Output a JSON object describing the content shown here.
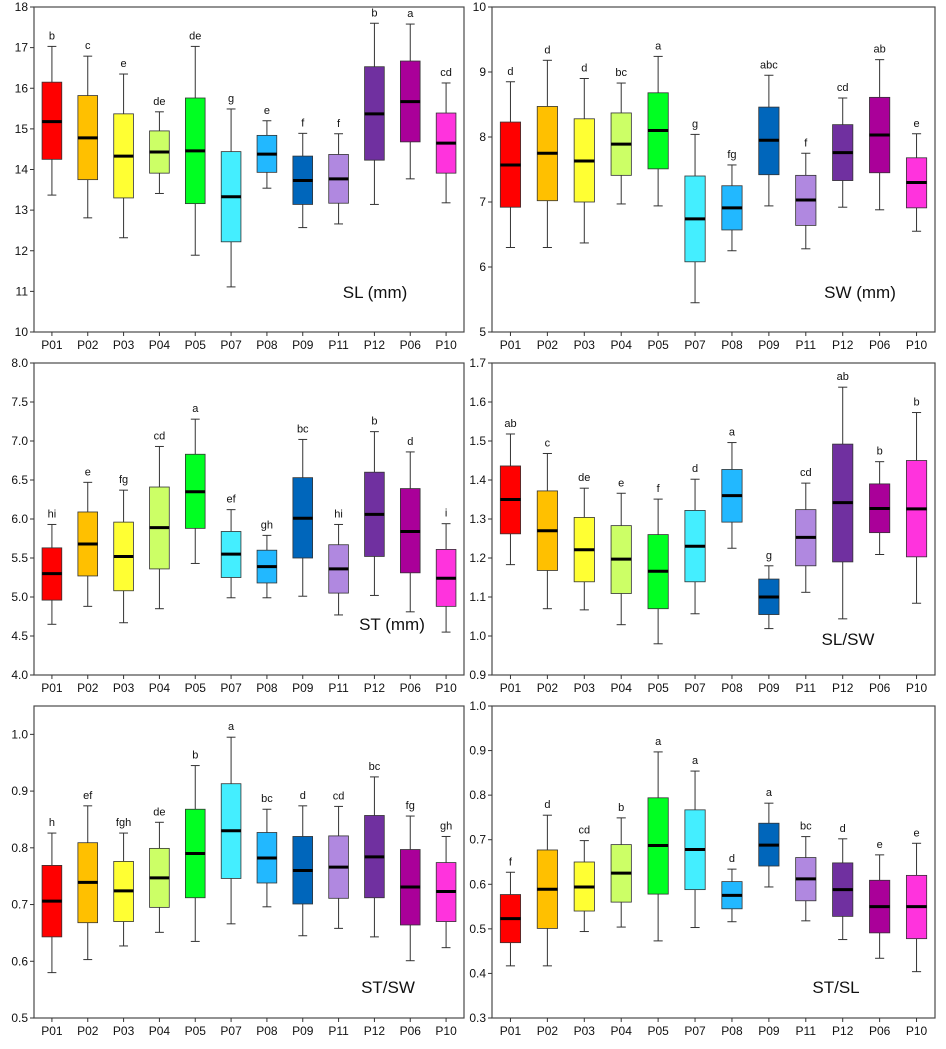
{
  "colors": {
    "P01": "#ff0000",
    "P02": "#ffc000",
    "P03": "#ffff33",
    "P04": "#ccff66",
    "P05": "#00ff22",
    "P07": "#44eeff",
    "P08": "#22b8ff",
    "P09": "#0066bb",
    "P11": "#b088e0",
    "P12": "#7030a0",
    "P06": "#aa0099",
    "P10": "#ff33dd"
  },
  "chart_data": [
    {
      "type": "box",
      "title": "SL (mm)",
      "categories": [
        "P01",
        "P02",
        "P03",
        "P04",
        "P05",
        "P07",
        "P08",
        "P09",
        "P11",
        "P12",
        "P06",
        "P10"
      ],
      "ylim": [
        10,
        18
      ],
      "yticks": [
        "10",
        "11",
        "12",
        "13",
        "14",
        "15",
        "16",
        "17",
        "18"
      ],
      "boxes": [
        {
          "min": 13.37,
          "q1": 14.25,
          "median": 15.18,
          "q3": 16.15,
          "max": 17.03,
          "letter": "b"
        },
        {
          "min": 12.81,
          "q1": 13.75,
          "median": 14.78,
          "q3": 15.82,
          "max": 16.79,
          "letter": "c"
        },
        {
          "min": 12.32,
          "q1": 13.3,
          "median": 14.33,
          "q3": 15.37,
          "max": 16.35,
          "letter": "e"
        },
        {
          "min": 13.41,
          "q1": 13.91,
          "median": 14.43,
          "q3": 14.95,
          "max": 15.42,
          "letter": "de"
        },
        {
          "min": 11.89,
          "q1": 13.16,
          "median": 14.46,
          "q3": 15.76,
          "max": 17.03,
          "letter": "de"
        },
        {
          "min": 11.11,
          "q1": 12.22,
          "median": 13.33,
          "q3": 14.44,
          "max": 15.49,
          "letter": "g"
        },
        {
          "min": 13.54,
          "q1": 13.93,
          "median": 14.38,
          "q3": 14.84,
          "max": 15.2,
          "letter": "e"
        },
        {
          "min": 12.57,
          "q1": 13.14,
          "median": 13.73,
          "q3": 14.33,
          "max": 14.89,
          "letter": "f"
        },
        {
          "min": 12.66,
          "q1": 13.17,
          "median": 13.77,
          "q3": 14.37,
          "max": 14.88,
          "letter": "f"
        },
        {
          "min": 13.14,
          "q1": 14.23,
          "median": 15.37,
          "q3": 16.53,
          "max": 17.6,
          "letter": "b"
        },
        {
          "min": 13.77,
          "q1": 14.68,
          "median": 15.67,
          "q3": 16.67,
          "max": 17.58,
          "letter": "a"
        },
        {
          "min": 13.18,
          "q1": 13.91,
          "median": 14.65,
          "q3": 15.39,
          "max": 16.13,
          "letter": "cd"
        }
      ]
    },
    {
      "type": "box",
      "title": "SW (mm)",
      "categories": [
        "P01",
        "P02",
        "P03",
        "P04",
        "P05",
        "P07",
        "P08",
        "P09",
        "P11",
        "P12",
        "P06",
        "P10"
      ],
      "ylim": [
        5,
        10
      ],
      "yticks": [
        "5",
        "6",
        "7",
        "8",
        "9",
        "10"
      ],
      "boxes": [
        {
          "min": 6.3,
          "q1": 6.92,
          "median": 7.57,
          "q3": 8.23,
          "max": 8.85,
          "letter": "d"
        },
        {
          "min": 6.3,
          "q1": 7.02,
          "median": 7.75,
          "q3": 8.47,
          "max": 9.18,
          "letter": "d"
        },
        {
          "min": 6.37,
          "q1": 7.0,
          "median": 7.63,
          "q3": 8.28,
          "max": 8.9,
          "letter": "d"
        },
        {
          "min": 6.97,
          "q1": 7.41,
          "median": 7.89,
          "q3": 8.37,
          "max": 8.83,
          "letter": "bc"
        },
        {
          "min": 6.94,
          "q1": 7.51,
          "median": 8.1,
          "q3": 8.68,
          "max": 9.24,
          "letter": "a"
        },
        {
          "min": 5.45,
          "q1": 6.08,
          "median": 6.74,
          "q3": 7.4,
          "max": 8.04,
          "letter": "g"
        },
        {
          "min": 6.25,
          "q1": 6.57,
          "median": 6.91,
          "q3": 7.25,
          "max": 7.57,
          "letter": "fg"
        },
        {
          "min": 6.94,
          "q1": 7.42,
          "median": 7.95,
          "q3": 8.46,
          "max": 8.95,
          "letter": "abc"
        },
        {
          "min": 6.28,
          "q1": 6.64,
          "median": 7.03,
          "q3": 7.41,
          "max": 7.75,
          "letter": "f"
        },
        {
          "min": 6.92,
          "q1": 7.33,
          "median": 7.76,
          "q3": 8.19,
          "max": 8.6,
          "letter": "cd"
        },
        {
          "min": 6.88,
          "q1": 7.45,
          "median": 8.03,
          "q3": 8.61,
          "max": 9.19,
          "letter": "ab"
        },
        {
          "min": 6.55,
          "q1": 6.91,
          "median": 7.3,
          "q3": 7.68,
          "max": 8.05,
          "letter": "e"
        }
      ]
    },
    {
      "type": "box",
      "title": "ST (mm)",
      "categories": [
        "P01",
        "P02",
        "P03",
        "P04",
        "P05",
        "P07",
        "P08",
        "P09",
        "P11",
        "P12",
        "P06",
        "P10"
      ],
      "ylim": [
        4.0,
        8.0
      ],
      "yticks": [
        "4.0",
        "4.5",
        "5.0",
        "5.5",
        "6.0",
        "6.5",
        "7.0",
        "7.5",
        "8.0"
      ],
      "boxes": [
        {
          "min": 4.65,
          "q1": 4.96,
          "median": 5.3,
          "q3": 5.63,
          "max": 5.93,
          "letter": "hi"
        },
        {
          "min": 4.88,
          "q1": 5.27,
          "median": 5.68,
          "q3": 6.09,
          "max": 6.47,
          "letter": "e"
        },
        {
          "min": 4.67,
          "q1": 5.08,
          "median": 5.52,
          "q3": 5.96,
          "max": 6.37,
          "letter": "fg"
        },
        {
          "min": 4.85,
          "q1": 5.36,
          "median": 5.89,
          "q3": 6.41,
          "max": 6.93,
          "letter": "cd"
        },
        {
          "min": 5.43,
          "q1": 5.88,
          "median": 6.35,
          "q3": 6.83,
          "max": 7.28,
          "letter": "a"
        },
        {
          "min": 4.99,
          "q1": 5.25,
          "median": 5.55,
          "q3": 5.84,
          "max": 6.12,
          "letter": "ef"
        },
        {
          "min": 4.99,
          "q1": 5.18,
          "median": 5.39,
          "q3": 5.6,
          "max": 5.79,
          "letter": "gh"
        },
        {
          "min": 5.01,
          "q1": 5.5,
          "median": 6.01,
          "q3": 6.53,
          "max": 7.02,
          "letter": "bc"
        },
        {
          "min": 4.77,
          "q1": 5.05,
          "median": 5.36,
          "q3": 5.67,
          "max": 5.93,
          "letter": "hi"
        },
        {
          "min": 5.02,
          "q1": 5.52,
          "median": 6.06,
          "q3": 6.6,
          "max": 7.12,
          "letter": "b"
        },
        {
          "min": 4.81,
          "q1": 5.31,
          "median": 5.84,
          "q3": 6.39,
          "max": 6.86,
          "letter": "d"
        },
        {
          "min": 4.55,
          "q1": 4.88,
          "median": 5.24,
          "q3": 5.61,
          "max": 5.94,
          "letter": "i"
        }
      ]
    },
    {
      "type": "box",
      "title": "SL/SW",
      "categories": [
        "P01",
        "P02",
        "P03",
        "P04",
        "P05",
        "P07",
        "P08",
        "P09",
        "P11",
        "P12",
        "P06",
        "P10"
      ],
      "ylim": [
        0.9,
        1.7
      ],
      "yticks": [
        "0.9",
        "1.0",
        "1.1",
        "1.2",
        "1.3",
        "1.4",
        "1.5",
        "1.6",
        "1.7"
      ],
      "boxes": [
        {
          "min": 1.183,
          "q1": 1.262,
          "median": 1.35,
          "q3": 1.436,
          "max": 1.518,
          "letter": "ab"
        },
        {
          "min": 1.07,
          "q1": 1.168,
          "median": 1.27,
          "q3": 1.372,
          "max": 1.468,
          "letter": "c"
        },
        {
          "min": 1.067,
          "q1": 1.139,
          "median": 1.221,
          "q3": 1.304,
          "max": 1.379,
          "letter": "de"
        },
        {
          "min": 1.029,
          "q1": 1.109,
          "median": 1.197,
          "q3": 1.283,
          "max": 1.366,
          "letter": "e"
        },
        {
          "min": 0.98,
          "q1": 1.07,
          "median": 1.166,
          "q3": 1.26,
          "max": 1.351,
          "letter": "f"
        },
        {
          "min": 1.057,
          "q1": 1.139,
          "median": 1.23,
          "q3": 1.322,
          "max": 1.402,
          "letter": "d"
        },
        {
          "min": 1.225,
          "q1": 1.292,
          "median": 1.36,
          "q3": 1.427,
          "max": 1.496,
          "letter": "a"
        },
        {
          "min": 1.019,
          "q1": 1.055,
          "median": 1.1,
          "q3": 1.146,
          "max": 1.18,
          "letter": "g"
        },
        {
          "min": 1.112,
          "q1": 1.18,
          "median": 1.253,
          "q3": 1.324,
          "max": 1.392,
          "letter": "cd"
        },
        {
          "min": 1.044,
          "q1": 1.19,
          "median": 1.342,
          "q3": 1.492,
          "max": 1.638,
          "letter": "ab"
        },
        {
          "min": 1.209,
          "q1": 1.265,
          "median": 1.327,
          "q3": 1.39,
          "max": 1.447,
          "letter": "b"
        },
        {
          "min": 1.084,
          "q1": 1.203,
          "median": 1.326,
          "q3": 1.45,
          "max": 1.573,
          "letter": "b"
        }
      ]
    },
    {
      "type": "box",
      "title": "ST/SW",
      "categories": [
        "P01",
        "P02",
        "P03",
        "P04",
        "P05",
        "P07",
        "P08",
        "P09",
        "P11",
        "P12",
        "P06",
        "P10"
      ],
      "ylim": [
        0.5,
        1.05
      ],
      "yticks": [
        "0.5",
        "0.6",
        "0.7",
        "0.8",
        "0.9",
        "1.0"
      ],
      "boxes": [
        {
          "min": 0.58,
          "q1": 0.643,
          "median": 0.706,
          "q3": 0.769,
          "max": 0.826,
          "letter": "h"
        },
        {
          "min": 0.603,
          "q1": 0.668,
          "median": 0.739,
          "q3": 0.809,
          "max": 0.874,
          "letter": "ef"
        },
        {
          "min": 0.627,
          "q1": 0.67,
          "median": 0.724,
          "q3": 0.776,
          "max": 0.826,
          "letter": "fgh"
        },
        {
          "min": 0.651,
          "q1": 0.695,
          "median": 0.747,
          "q3": 0.799,
          "max": 0.845,
          "letter": "de"
        },
        {
          "min": 0.635,
          "q1": 0.712,
          "median": 0.79,
          "q3": 0.868,
          "max": 0.945,
          "letter": "b"
        },
        {
          "min": 0.666,
          "q1": 0.746,
          "median": 0.83,
          "q3": 0.913,
          "max": 0.995,
          "letter": "a"
        },
        {
          "min": 0.696,
          "q1": 0.738,
          "median": 0.782,
          "q3": 0.827,
          "max": 0.868,
          "letter": "bc"
        },
        {
          "min": 0.645,
          "q1": 0.701,
          "median": 0.76,
          "q3": 0.82,
          "max": 0.874,
          "letter": "d"
        },
        {
          "min": 0.658,
          "q1": 0.711,
          "median": 0.766,
          "q3": 0.821,
          "max": 0.873,
          "letter": "cd"
        },
        {
          "min": 0.643,
          "q1": 0.712,
          "median": 0.784,
          "q3": 0.857,
          "max": 0.925,
          "letter": "bc"
        },
        {
          "min": 0.601,
          "q1": 0.664,
          "median": 0.731,
          "q3": 0.797,
          "max": 0.856,
          "letter": "fg"
        },
        {
          "min": 0.624,
          "q1": 0.67,
          "median": 0.723,
          "q3": 0.774,
          "max": 0.82,
          "letter": "gh"
        }
      ]
    },
    {
      "type": "box",
      "title": "ST/SL",
      "categories": [
        "P01",
        "P02",
        "P03",
        "P04",
        "P05",
        "P07",
        "P08",
        "P09",
        "P11",
        "P12",
        "P06",
        "P10"
      ],
      "ylim": [
        0.3,
        1.0
      ],
      "yticks": [
        "0.3",
        "0.4",
        "0.5",
        "0.6",
        "0.7",
        "0.8",
        "0.9",
        "1.0"
      ],
      "boxes": [
        {
          "min": 0.417,
          "q1": 0.469,
          "median": 0.523,
          "q3": 0.577,
          "max": 0.627,
          "letter": "f"
        },
        {
          "min": 0.417,
          "q1": 0.501,
          "median": 0.589,
          "q3": 0.677,
          "max": 0.755,
          "letter": "d"
        },
        {
          "min": 0.494,
          "q1": 0.54,
          "median": 0.594,
          "q3": 0.65,
          "max": 0.698,
          "letter": "cd"
        },
        {
          "min": 0.504,
          "q1": 0.56,
          "median": 0.625,
          "q3": 0.689,
          "max": 0.749,
          "letter": "b"
        },
        {
          "min": 0.473,
          "q1": 0.578,
          "median": 0.687,
          "q3": 0.794,
          "max": 0.897,
          "letter": "a"
        },
        {
          "min": 0.503,
          "q1": 0.588,
          "median": 0.678,
          "q3": 0.767,
          "max": 0.854,
          "letter": "a"
        },
        {
          "min": 0.516,
          "q1": 0.545,
          "median": 0.575,
          "q3": 0.606,
          "max": 0.634,
          "letter": "d"
        },
        {
          "min": 0.594,
          "q1": 0.641,
          "median": 0.688,
          "q3": 0.737,
          "max": 0.782,
          "letter": "a"
        },
        {
          "min": 0.518,
          "q1": 0.563,
          "median": 0.612,
          "q3": 0.66,
          "max": 0.707,
          "letter": "bc"
        },
        {
          "min": 0.476,
          "q1": 0.528,
          "median": 0.588,
          "q3": 0.648,
          "max": 0.702,
          "letter": "d"
        },
        {
          "min": 0.434,
          "q1": 0.491,
          "median": 0.55,
          "q3": 0.609,
          "max": 0.666,
          "letter": "e"
        },
        {
          "min": 0.404,
          "q1": 0.478,
          "median": 0.55,
          "q3": 0.62,
          "max": 0.692,
          "letter": "e"
        }
      ]
    }
  ]
}
